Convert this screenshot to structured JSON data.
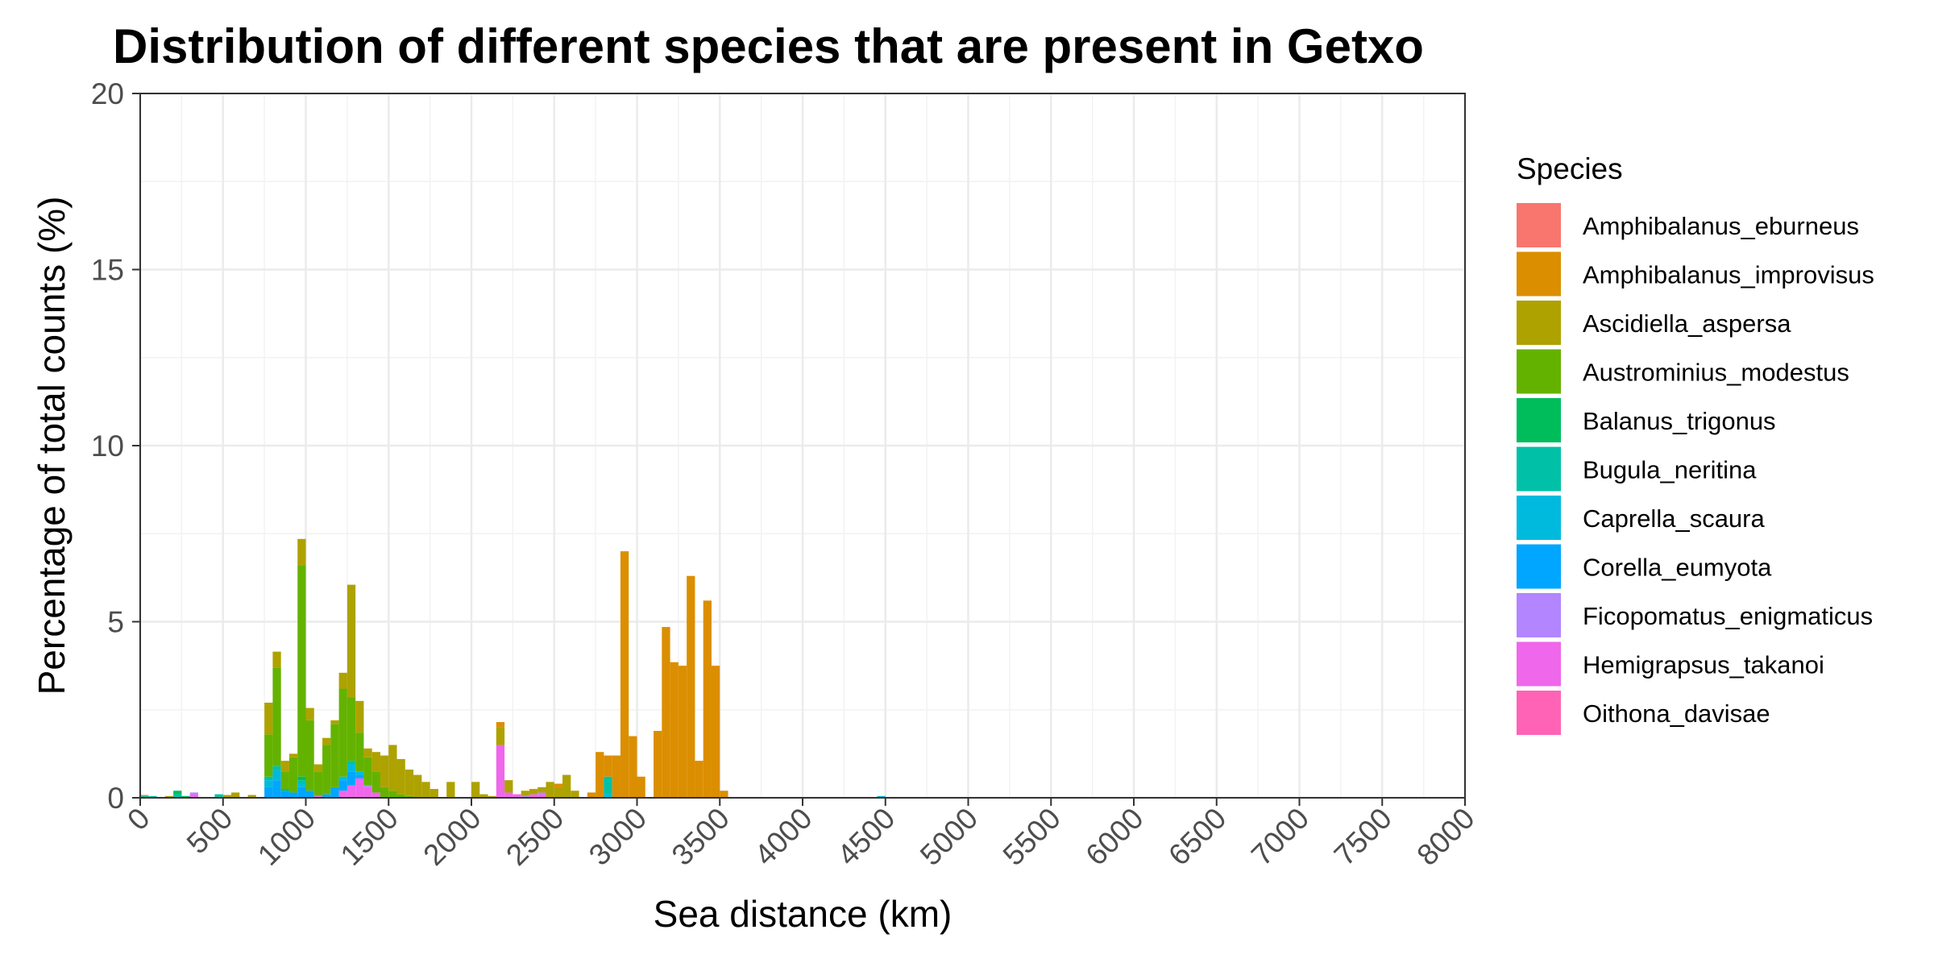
{
  "chart_data": {
    "type": "bar",
    "stacked": true,
    "title": "Distribution of different species that are present in Getxo",
    "xlabel": "Sea distance (km)",
    "ylabel": "Percentage of total counts (%)",
    "xlim": [
      0,
      8000
    ],
    "ylim": [
      0,
      20
    ],
    "bin_width": 50,
    "x_ticks": [
      0,
      500,
      1000,
      1500,
      2000,
      2500,
      3000,
      3500,
      4000,
      4500,
      5000,
      5500,
      6000,
      6500,
      7000,
      7500,
      8000
    ],
    "x_tick_labels": [
      "0",
      "500",
      "1000",
      "1500",
      "2000",
      "2500",
      "3000",
      "3500",
      "4000",
      "4500",
      "5000",
      "5500",
      "6000",
      "6500",
      "7000",
      "7500",
      "8000"
    ],
    "y_ticks": [
      0,
      5,
      10,
      15,
      20
    ],
    "y_tick_labels": [
      "0",
      "5",
      "10",
      "15",
      "20"
    ],
    "grid": true,
    "legend_title": "Species",
    "legend_position": "right",
    "series": [
      {
        "name": "Amphibalanus_eburneus",
        "color": "#F8766D",
        "bins": []
      },
      {
        "name": "Amphibalanus_improvisus",
        "color": "#DB8E00",
        "bins": [
          [
            2175,
            0.15
          ],
          [
            2525,
            0.1
          ],
          [
            2725,
            0.15
          ],
          [
            2775,
            1.3
          ],
          [
            2825,
            0.6
          ],
          [
            2875,
            1.2
          ],
          [
            2925,
            7.0
          ],
          [
            2975,
            1.75
          ],
          [
            3025,
            0.6
          ],
          [
            3125,
            1.9
          ],
          [
            3175,
            4.85
          ],
          [
            3225,
            3.85
          ],
          [
            3275,
            3.75
          ],
          [
            3325,
            6.3
          ],
          [
            3375,
            1.05
          ],
          [
            3425,
            5.6
          ],
          [
            3475,
            3.75
          ],
          [
            3525,
            0.2
          ]
        ]
      },
      {
        "name": "Ascidiella_aspersa",
        "color": "#AEA200",
        "bins": [
          [
            25,
            0.03
          ],
          [
            175,
            0.05
          ],
          [
            425,
            0.02
          ],
          [
            525,
            0.08
          ],
          [
            575,
            0.15
          ],
          [
            675,
            0.08
          ],
          [
            775,
            0.9
          ],
          [
            825,
            0.45
          ],
          [
            875,
            0.3
          ],
          [
            925,
            0.1
          ],
          [
            975,
            0.75
          ],
          [
            1025,
            0.35
          ],
          [
            1075,
            0.2
          ],
          [
            1125,
            0.2
          ],
          [
            1175,
            0.1
          ],
          [
            1225,
            0.45
          ],
          [
            1275,
            3.2
          ],
          [
            1325,
            0.9
          ],
          [
            1375,
            0.25
          ],
          [
            1425,
            0.55
          ],
          [
            1475,
            0.9
          ],
          [
            1525,
            1.3
          ],
          [
            1575,
            1.0
          ],
          [
            1625,
            0.75
          ],
          [
            1675,
            0.65
          ],
          [
            1725,
            0.45
          ],
          [
            1775,
            0.25
          ],
          [
            1875,
            0.45
          ],
          [
            2025,
            0.45
          ],
          [
            2075,
            0.1
          ],
          [
            2125,
            0.05
          ],
          [
            2175,
            0.5
          ],
          [
            2225,
            0.35
          ],
          [
            2325,
            0.15
          ],
          [
            2375,
            0.15
          ],
          [
            2425,
            0.15
          ],
          [
            2475,
            0.45
          ],
          [
            2525,
            0.3
          ],
          [
            2575,
            0.65
          ],
          [
            2625,
            0.2
          ]
        ]
      },
      {
        "name": "Austrominius_modestus",
        "color": "#64B200",
        "bins": [
          [
            775,
            1.2
          ],
          [
            825,
            2.8
          ],
          [
            875,
            0.5
          ],
          [
            925,
            1.0
          ],
          [
            975,
            6.0
          ],
          [
            1025,
            2.0
          ],
          [
            1075,
            0.7
          ],
          [
            1125,
            1.4
          ],
          [
            1175,
            1.8
          ],
          [
            1225,
            2.5
          ],
          [
            1275,
            1.8
          ],
          [
            1325,
            1.1
          ],
          [
            1375,
            0.8
          ],
          [
            1425,
            0.6
          ],
          [
            1475,
            0.3
          ],
          [
            1525,
            0.2
          ],
          [
            1575,
            0.1
          ],
          [
            1625,
            0.05
          ]
        ]
      },
      {
        "name": "Balanus_trigonus",
        "color": "#00BD5C",
        "bins": [
          [
            225,
            0.1
          ],
          [
            275,
            0.05
          ],
          [
            875,
            0.05
          ],
          [
            975,
            0.1
          ]
        ]
      },
      {
        "name": "Bugula_neritina",
        "color": "#00C1A7",
        "bins": [
          [
            25,
            0.05
          ],
          [
            75,
            0.05
          ],
          [
            225,
            0.1
          ],
          [
            475,
            0.1
          ],
          [
            775,
            0.1
          ],
          [
            825,
            0.1
          ],
          [
            975,
            0.1
          ],
          [
            1275,
            0.1
          ],
          [
            2825,
            0.5
          ]
        ]
      },
      {
        "name": "Caprella_scaura",
        "color": "#00BADE",
        "bins": [
          [
            775,
            0.2
          ],
          [
            825,
            0.3
          ],
          [
            975,
            0.1
          ],
          [
            1225,
            0.1
          ],
          [
            1275,
            0.2
          ],
          [
            1325,
            0.1
          ],
          [
            2825,
            0.1
          ],
          [
            4475,
            0.05
          ]
        ]
      },
      {
        "name": "Corella_eumyota",
        "color": "#00A6FF",
        "bins": [
          [
            775,
            0.3
          ],
          [
            825,
            0.5
          ],
          [
            875,
            0.2
          ],
          [
            925,
            0.15
          ],
          [
            975,
            0.3
          ],
          [
            1025,
            0.2
          ],
          [
            1125,
            0.1
          ],
          [
            1175,
            0.3
          ],
          [
            1225,
            0.3
          ],
          [
            1275,
            0.4
          ],
          [
            1325,
            0.1
          ]
        ]
      },
      {
        "name": "Ficopomatus_enigmaticus",
        "color": "#B385FF",
        "bins": [
          [
            325,
            0.05
          ],
          [
            1375,
            0.05
          ],
          [
            2325,
            0.05
          ],
          [
            2425,
            0.05
          ]
        ]
      },
      {
        "name": "Hemigrapsus_takanoi",
        "color": "#EF67EB",
        "bins": [
          [
            325,
            0.1
          ],
          [
            1075,
            0.05
          ],
          [
            1225,
            0.2
          ],
          [
            1275,
            0.35
          ],
          [
            1325,
            0.55
          ],
          [
            1375,
            0.3
          ],
          [
            1425,
            0.15
          ],
          [
            2175,
            1.5
          ],
          [
            2225,
            0.15
          ],
          [
            2275,
            0.1
          ],
          [
            2375,
            0.1
          ],
          [
            2425,
            0.1
          ]
        ]
      },
      {
        "name": "Oithona_davisae",
        "color": "#FF63B6",
        "bins": []
      }
    ]
  }
}
